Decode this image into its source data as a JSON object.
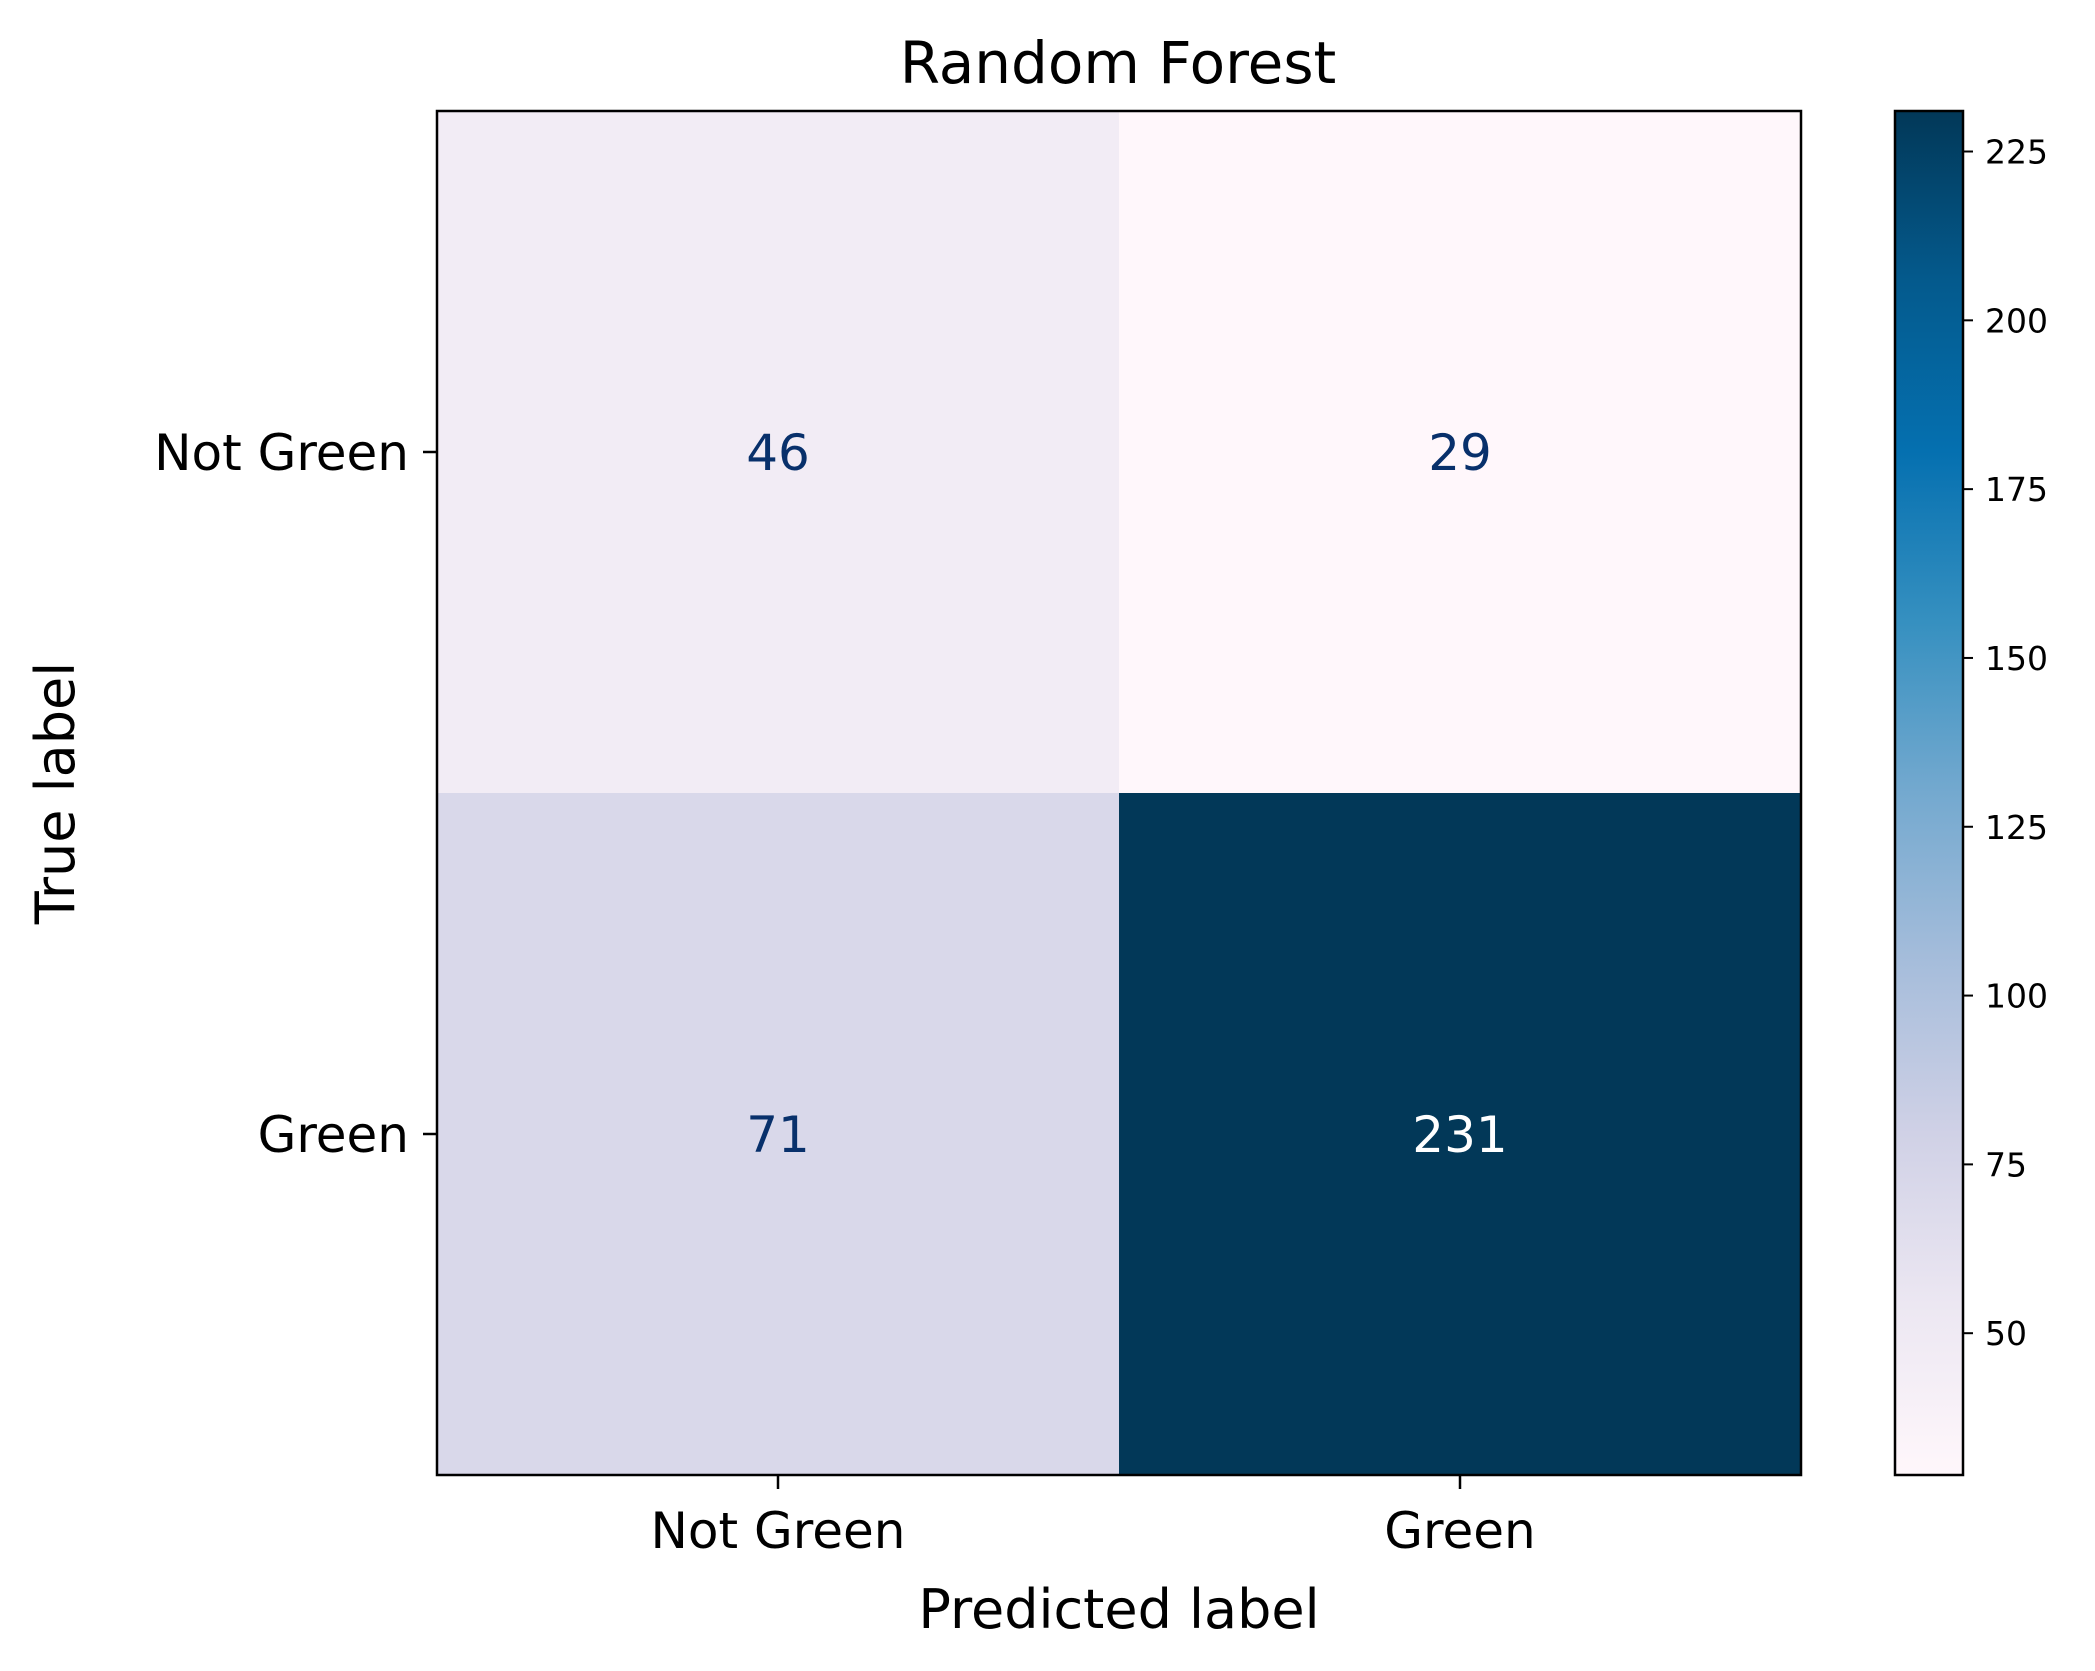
{
  "chart_data": {
    "type": "heatmap",
    "title": "Random Forest",
    "xlabel": "Predicted label",
    "ylabel": "True label",
    "x_categories": [
      "Not Green",
      "Green"
    ],
    "y_categories": [
      "Not Green",
      "Green"
    ],
    "values": [
      [
        46,
        29
      ],
      [
        71,
        231
      ]
    ],
    "colormap": "PuBu",
    "colorbar": {
      "range": [
        29,
        231
      ],
      "ticks": [
        50,
        75,
        100,
        125,
        150,
        175,
        200,
        225
      ],
      "tick_labels": [
        "50",
        "75",
        "100",
        "125",
        "150",
        "175",
        "200",
        "225"
      ]
    },
    "colors": {
      "cell_text_dark": "#08306b",
      "cell_text_light": "#ffffff",
      "axis": "#000000"
    }
  }
}
